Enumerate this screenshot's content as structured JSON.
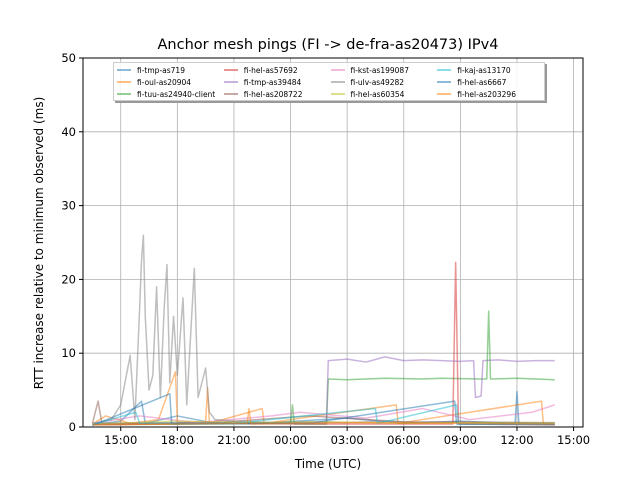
{
  "chart_data": {
    "type": "line",
    "title": "Anchor mesh pings (FI -> de-fra-as20473) IPv4",
    "xlabel": "Time (UTC)",
    "ylabel": "RTT increase relative to minimum observed (ms)",
    "x_units": "hours since 15:00 first day",
    "xlim": [
      -2.0,
      24.5
    ],
    "ylim": [
      0,
      50
    ],
    "grid": true,
    "legend_position": "top-center",
    "xticks": [
      {
        "value": 0,
        "label": "15:00"
      },
      {
        "value": 3,
        "label": "18:00"
      },
      {
        "value": 6,
        "label": "21:00"
      },
      {
        "value": 9,
        "label": "00:00"
      },
      {
        "value": 12,
        "label": "03:00"
      },
      {
        "value": 15,
        "label": "06:00"
      },
      {
        "value": 18,
        "label": "09:00"
      },
      {
        "value": 21,
        "label": "12:00"
      },
      {
        "value": 24,
        "label": "15:00"
      }
    ],
    "yticks": [
      0,
      10,
      20,
      30,
      40,
      50
    ],
    "series": [
      {
        "name": "fi-tmp-as719",
        "color": "#1f77b4",
        "points": [
          [
            -1.5,
            0.3
          ],
          [
            0,
            0.8
          ],
          [
            1.1,
            3.5
          ],
          [
            1.3,
            0.5
          ],
          [
            3,
            1.5
          ],
          [
            5,
            0.5
          ],
          [
            8,
            0.6
          ],
          [
            12,
            1.2
          ],
          [
            15,
            0.5
          ],
          [
            18,
            0.8
          ],
          [
            20.9,
            0.5
          ],
          [
            21,
            4.8
          ],
          [
            21.1,
            0.5
          ],
          [
            23,
            0.4
          ]
        ]
      },
      {
        "name": "fi-oul-as20904",
        "color": "#ff7f0e",
        "points": [
          [
            -1.5,
            0.4
          ],
          [
            -0.8,
            1.5
          ],
          [
            0.5,
            0.5
          ],
          [
            2,
            1
          ],
          [
            2.9,
            7.5
          ],
          [
            3,
            0.6
          ],
          [
            4.5,
            0.7
          ],
          [
            4.6,
            5.3
          ],
          [
            4.7,
            0.5
          ],
          [
            7.5,
            2.5
          ],
          [
            7.6,
            0.5
          ],
          [
            14.6,
            3
          ],
          [
            14.7,
            0.5
          ],
          [
            22.3,
            3.5
          ],
          [
            22.4,
            0.4
          ],
          [
            23,
            0.4
          ]
        ]
      },
      {
        "name": "fi-tuu-as24940-client",
        "color": "#2ca02c",
        "points": [
          [
            -1.5,
            0.3
          ],
          [
            9,
            0.5
          ],
          [
            9.1,
            3
          ],
          [
            9.2,
            0.4
          ],
          [
            10.9,
            0.4
          ],
          [
            11,
            6.5
          ],
          [
            12,
            6.4
          ],
          [
            14,
            6.6
          ],
          [
            16,
            6.5
          ],
          [
            17,
            6.6
          ],
          [
            19,
            6.5
          ],
          [
            19.4,
            6.5
          ],
          [
            19.5,
            15.7
          ],
          [
            19.6,
            6.5
          ],
          [
            21,
            6.6
          ],
          [
            23,
            6.4
          ]
        ]
      },
      {
        "name": "fi-hel-as57692",
        "color": "#d62728",
        "points": [
          [
            -1.5,
            0.3
          ],
          [
            5,
            0.5
          ],
          [
            10,
            0.4
          ],
          [
            17.6,
            0.4
          ],
          [
            17.75,
            22.3
          ],
          [
            17.9,
            0.4
          ],
          [
            23,
            0.3
          ]
        ]
      },
      {
        "name": "fi-tmp-as39484",
        "color": "#9467bd",
        "points": [
          [
            -1.5,
            0.4
          ],
          [
            5,
            0.6
          ],
          [
            10.9,
            0.6
          ],
          [
            11,
            9
          ],
          [
            12,
            9.2
          ],
          [
            13,
            8.8
          ],
          [
            14,
            9.5
          ],
          [
            15,
            9
          ],
          [
            16,
            9.1
          ],
          [
            17,
            9
          ],
          [
            18,
            8.9
          ],
          [
            18.7,
            9
          ],
          [
            18.8,
            4
          ],
          [
            19.1,
            4.2
          ],
          [
            19.2,
            9
          ],
          [
            20,
            9.1
          ],
          [
            21,
            8.9
          ],
          [
            22,
            9
          ],
          [
            23,
            9
          ]
        ]
      },
      {
        "name": "fi-hel-as208722",
        "color": "#8c564b",
        "points": [
          [
            -1.5,
            0.5
          ],
          [
            -1.2,
            3.5
          ],
          [
            -1,
            0.5
          ],
          [
            5,
            0.6
          ],
          [
            10,
            1.5
          ],
          [
            15,
            0.7
          ],
          [
            23,
            0.6
          ]
        ]
      },
      {
        "name": "fi-kst-as199087",
        "color": "#e377c2",
        "points": [
          [
            -1.5,
            0.5
          ],
          [
            1,
            1.5
          ],
          [
            4,
            0.6
          ],
          [
            8,
            1.5
          ],
          [
            9.5,
            2
          ],
          [
            13,
            1.2
          ],
          [
            16,
            2.5
          ],
          [
            18.5,
            1
          ],
          [
            21.8,
            2
          ],
          [
            23,
            3
          ]
        ]
      },
      {
        "name": "fi-ulv-as49282",
        "color": "#7f7f7f",
        "points": [
          [
            -1.5,
            0.5
          ],
          [
            -0.5,
            1
          ],
          [
            0,
            3
          ],
          [
            0.5,
            9.7
          ],
          [
            0.75,
            1
          ],
          [
            1,
            16
          ],
          [
            1.1,
            22.5
          ],
          [
            1.2,
            26
          ],
          [
            1.3,
            15
          ],
          [
            1.5,
            5
          ],
          [
            1.7,
            7
          ],
          [
            1.9,
            19
          ],
          [
            2.1,
            4
          ],
          [
            2.3,
            16
          ],
          [
            2.45,
            22
          ],
          [
            2.6,
            6
          ],
          [
            2.8,
            15
          ],
          [
            3,
            7
          ],
          [
            3.3,
            17.5
          ],
          [
            3.5,
            3
          ],
          [
            3.9,
            21.5
          ],
          [
            4.1,
            4
          ],
          [
            4.5,
            8
          ],
          [
            4.7,
            2
          ],
          [
            5,
            1
          ],
          [
            6,
            0.8
          ],
          [
            8,
            0.6
          ],
          [
            10,
            0.7
          ],
          [
            12,
            0.6
          ],
          [
            14,
            0.8
          ],
          [
            16,
            0.6
          ],
          [
            18,
            0.7
          ],
          [
            20,
            0.6
          ],
          [
            23,
            0.5
          ]
        ]
      },
      {
        "name": "fi-hel-as60354",
        "color": "#bcbd22",
        "points": [
          [
            -1.5,
            0.4
          ],
          [
            3,
            0.8
          ],
          [
            7,
            0.6
          ],
          [
            11,
            0.7
          ],
          [
            15,
            0.5
          ],
          [
            19,
            0.6
          ],
          [
            23,
            0.5
          ]
        ]
      },
      {
        "name": "fi-kaj-as13170",
        "color": "#17becf",
        "points": [
          [
            -1.5,
            0.3
          ],
          [
            0.8,
            2
          ],
          [
            1,
            0.5
          ],
          [
            6,
            0.5
          ],
          [
            13.5,
            2.5
          ],
          [
            13.6,
            0.5
          ],
          [
            17.8,
            3
          ],
          [
            17.9,
            0.4
          ],
          [
            23,
            0.4
          ]
        ]
      },
      {
        "name": "fi-hel-as6667",
        "color": "#1f77b4",
        "points": [
          [
            -1.5,
            0.2
          ],
          [
            2.6,
            4.5
          ],
          [
            2.7,
            0.4
          ],
          [
            10,
            0.5
          ],
          [
            17.7,
            3.5
          ],
          [
            17.8,
            0.4
          ],
          [
            23,
            0.3
          ]
        ]
      },
      {
        "name": "fi-hel-as203296",
        "color": "#ff7f0e",
        "points": [
          [
            -1.5,
            0.3
          ],
          [
            6.7,
            0.5
          ],
          [
            6.8,
            2.5
          ],
          [
            6.9,
            0.4
          ],
          [
            12,
            0.6
          ],
          [
            18,
            0.5
          ],
          [
            23,
            0.4
          ]
        ]
      }
    ]
  }
}
